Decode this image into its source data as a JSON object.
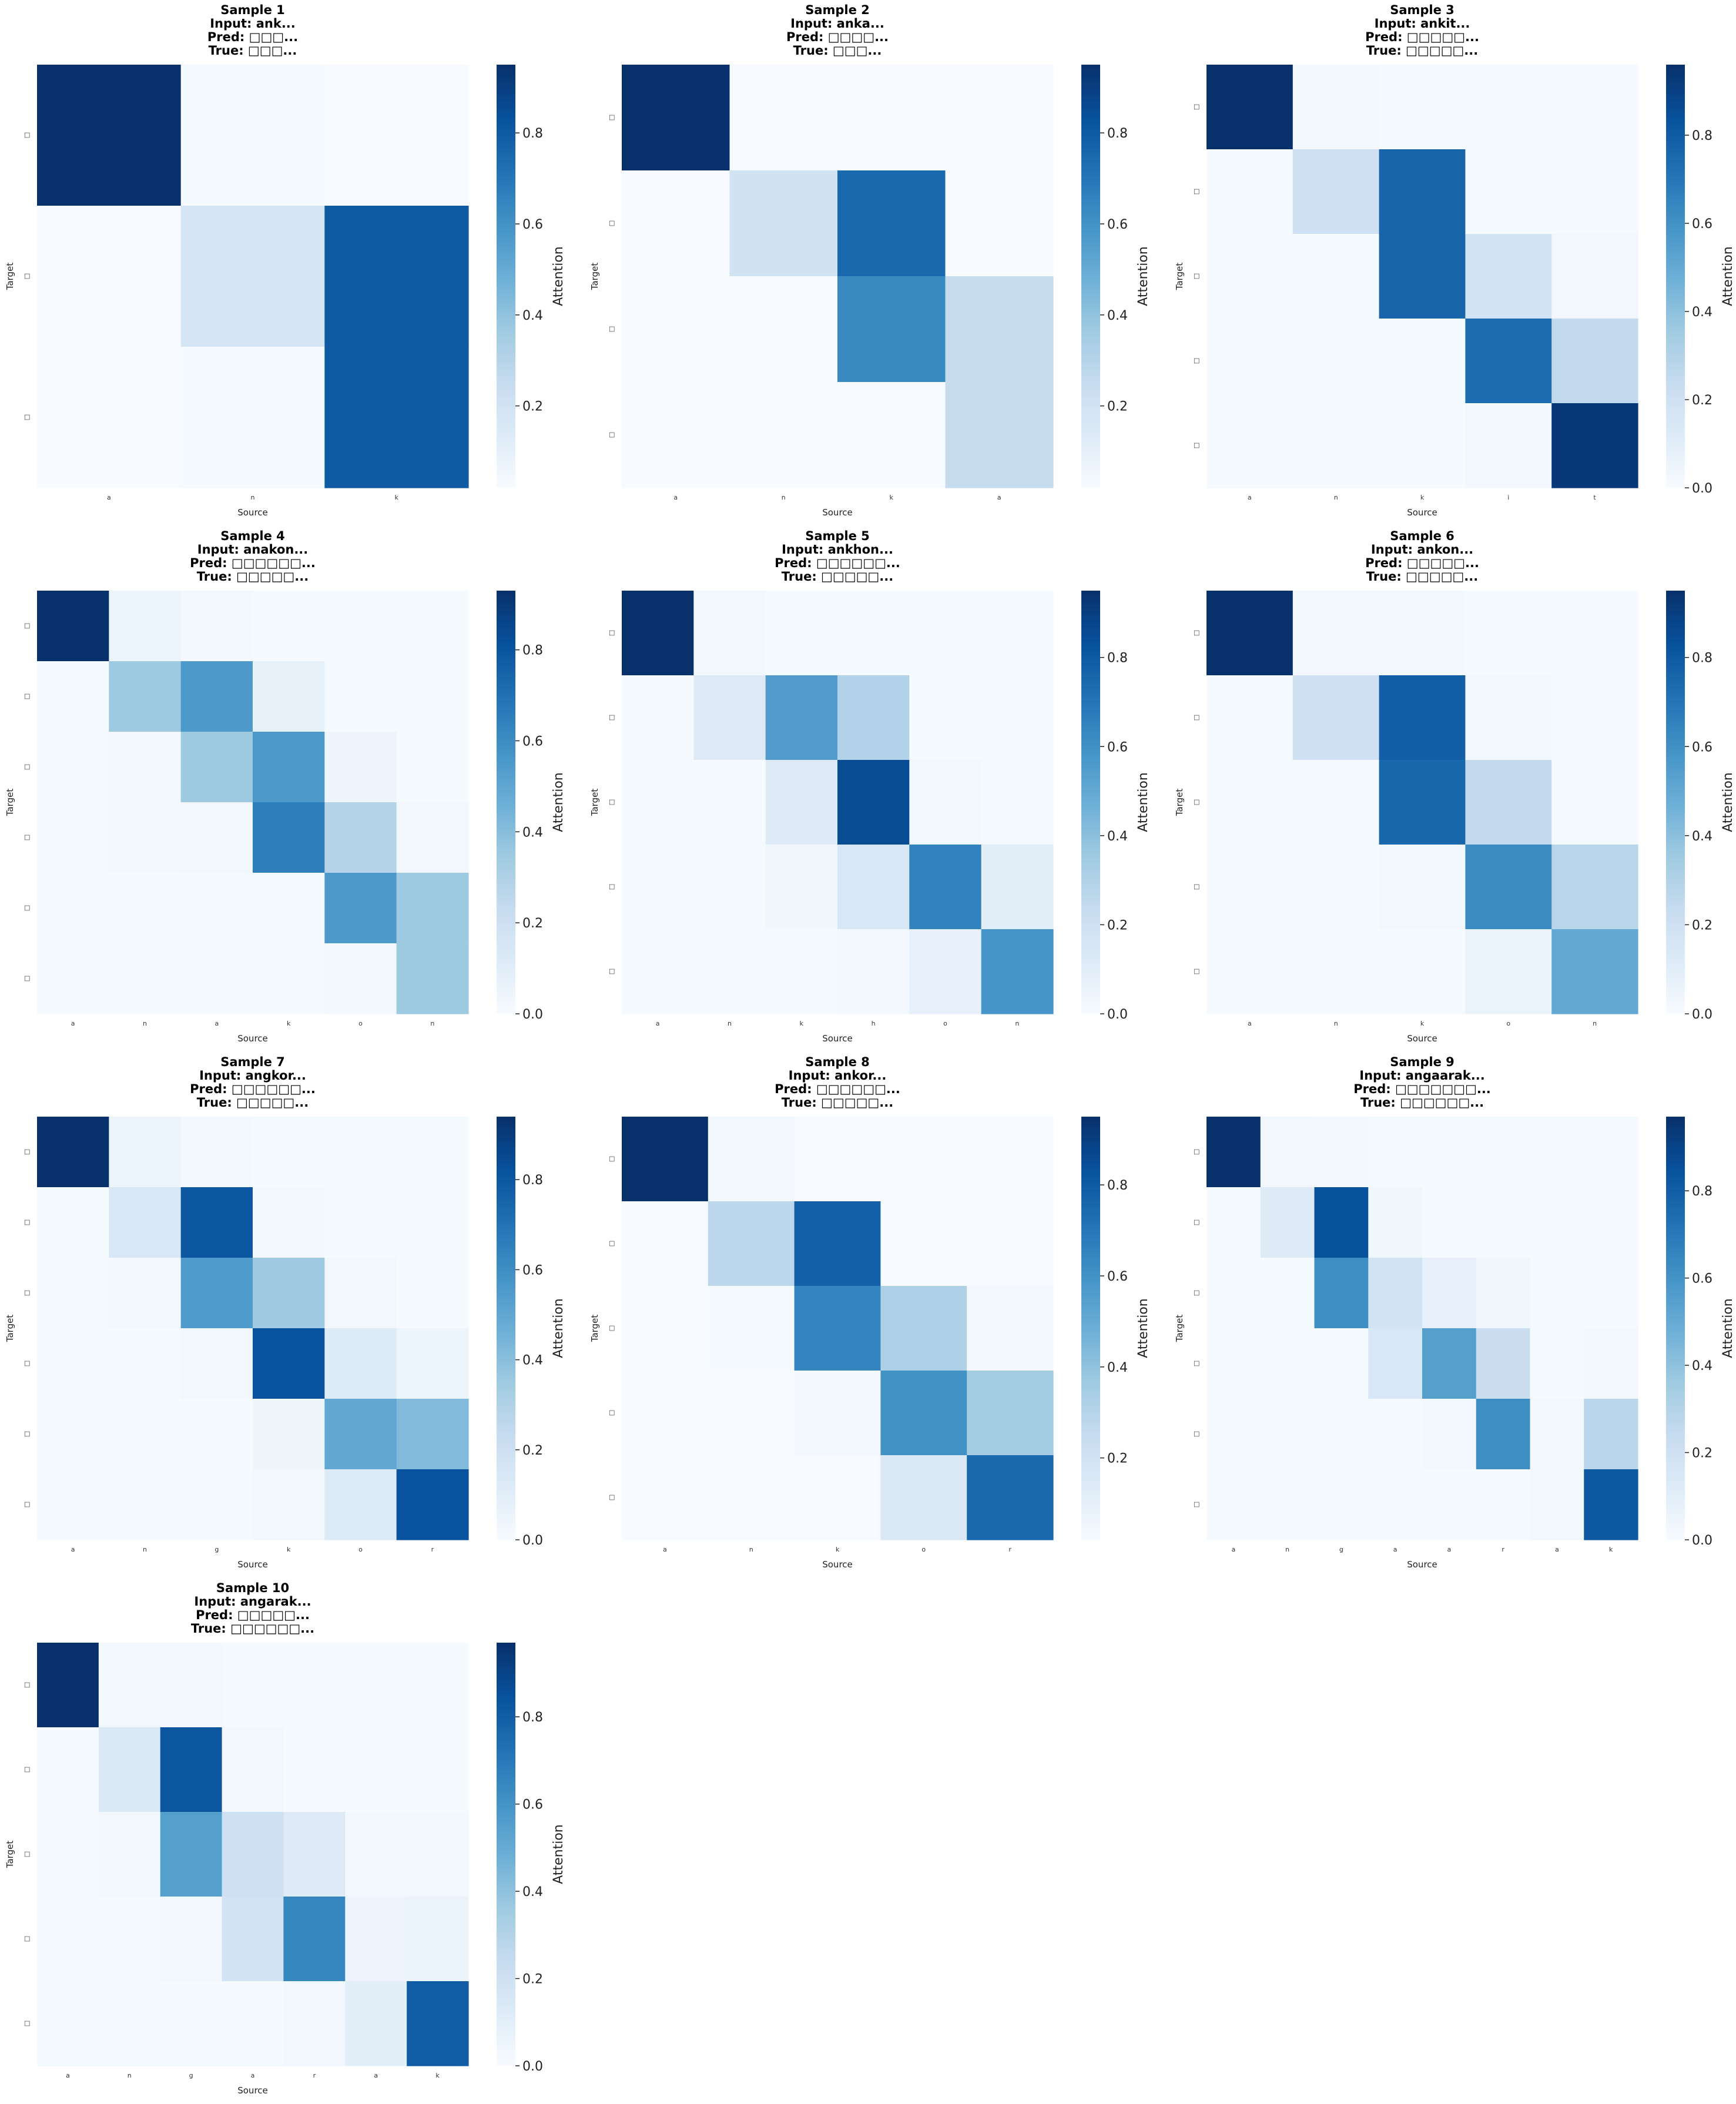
{
  "figure": {
    "colormap": "Blues",
    "color_low": "#f7fbff",
    "color_high": "#08306b"
  },
  "chart_data": [
    {
      "type": "heatmap",
      "title_lines": [
        "Sample 1",
        "Input: ank...",
        "Pred: □□□...",
        "True: □□□..."
      ],
      "xlabel": "Source",
      "ylabel": "Target",
      "colorbar_label": "Attention",
      "x_ticks": [
        "a",
        "n",
        "k"
      ],
      "y_ticks": [
        "□",
        "□",
        "□"
      ],
      "colorbar_ticks": [
        0.2,
        0.4,
        0.6,
        0.8
      ],
      "vmin": 0.02,
      "vmax": 0.95,
      "values": [
        [
          0.95,
          0.03,
          0.02
        ],
        [
          0.02,
          0.18,
          0.8
        ],
        [
          0.02,
          0.03,
          0.8
        ]
      ]
    },
    {
      "type": "heatmap",
      "title_lines": [
        "Sample 2",
        "Input: anka...",
        "Pred: □□□□...",
        "True: □□□..."
      ],
      "xlabel": "Source",
      "ylabel": "Target",
      "colorbar_label": "Attention",
      "x_ticks": [
        "a",
        "n",
        "k",
        "a"
      ],
      "y_ticks": [
        "□",
        "□",
        "□",
        "□"
      ],
      "colorbar_ticks": [
        0.2,
        0.4,
        0.6,
        0.8
      ],
      "vmin": 0.02,
      "vmax": 0.95,
      "values": [
        [
          0.95,
          0.02,
          0.02,
          0.02
        ],
        [
          0.02,
          0.2,
          0.75,
          0.02
        ],
        [
          0.02,
          0.02,
          0.63,
          0.25
        ],
        [
          0.02,
          0.02,
          0.02,
          0.25
        ]
      ]
    },
    {
      "type": "heatmap",
      "title_lines": [
        "Sample 3",
        "Input: ankit...",
        "Pred: □□□□□...",
        "True: □□□□□..."
      ],
      "xlabel": "Source",
      "ylabel": "Target",
      "colorbar_label": "Attention",
      "x_ticks": [
        "a",
        "n",
        "k",
        "i",
        "t"
      ],
      "y_ticks": [
        "□",
        "□",
        "□",
        "□",
        "□"
      ],
      "colorbar_ticks": [
        0.0,
        0.2,
        0.4,
        0.6,
        0.8
      ],
      "vmin": 0.0,
      "vmax": 0.96,
      "values": [
        [
          0.96,
          0.02,
          0.01,
          0.01,
          0.01
        ],
        [
          0.01,
          0.2,
          0.77,
          0.01,
          0.01
        ],
        [
          0.01,
          0.01,
          0.77,
          0.18,
          0.03
        ],
        [
          0.01,
          0.01,
          0.01,
          0.74,
          0.25
        ],
        [
          0.01,
          0.01,
          0.01,
          0.03,
          0.93
        ]
      ]
    },
    {
      "type": "heatmap",
      "title_lines": [
        "Sample 4",
        "Input: anakon...",
        "Pred: □□□□□□...",
        "True: □□□□□..."
      ],
      "xlabel": "Source",
      "ylabel": "Target",
      "colorbar_label": "Attention",
      "x_ticks": [
        "a",
        "n",
        "a",
        "k",
        "o",
        "n"
      ],
      "y_ticks": [
        "□",
        "□",
        "□",
        "□",
        "□",
        "□"
      ],
      "colorbar_ticks": [
        0.0,
        0.2,
        0.4,
        0.6,
        0.8
      ],
      "vmin": 0.0,
      "vmax": 0.93,
      "values": [
        [
          0.93,
          0.05,
          0.02,
          0.01,
          0.01,
          0.01
        ],
        [
          0.01,
          0.35,
          0.55,
          0.08,
          0.01,
          0.01
        ],
        [
          0.01,
          0.02,
          0.35,
          0.55,
          0.04,
          0.01
        ],
        [
          0.01,
          0.02,
          0.03,
          0.65,
          0.28,
          0.03
        ],
        [
          0.01,
          0.01,
          0.01,
          0.01,
          0.55,
          0.35
        ],
        [
          0.01,
          0.01,
          0.01,
          0.01,
          0.02,
          0.35
        ]
      ]
    },
    {
      "type": "heatmap",
      "title_lines": [
        "Sample 5",
        "Input: ankhon...",
        "Pred: □□□□□□...",
        "True: □□□□□..."
      ],
      "xlabel": "Source",
      "ylabel": "Target",
      "colorbar_label": "Attention",
      "x_ticks": [
        "a",
        "n",
        "k",
        "h",
        "o",
        "n"
      ],
      "y_ticks": [
        "□",
        "□",
        "□",
        "□",
        "□"
      ],
      "colorbar_ticks": [
        0.0,
        0.2,
        0.4,
        0.6,
        0.8
      ],
      "vmin": 0.0,
      "vmax": 0.95,
      "values": [
        [
          0.95,
          0.03,
          0.01,
          0.01,
          0.01,
          0.01
        ],
        [
          0.01,
          0.12,
          0.55,
          0.3,
          0.01,
          0.01
        ],
        [
          0.01,
          0.01,
          0.12,
          0.85,
          0.03,
          0.01
        ],
        [
          0.01,
          0.01,
          0.04,
          0.15,
          0.65,
          0.1
        ],
        [
          0.01,
          0.01,
          0.01,
          0.02,
          0.08,
          0.58
        ]
      ]
    },
    {
      "type": "heatmap",
      "title_lines": [
        "Sample 6",
        "Input: ankon...",
        "Pred: □□□□□...",
        "True: □□□□□..."
      ],
      "xlabel": "Source",
      "ylabel": "Target",
      "colorbar_label": "Attention",
      "x_ticks": [
        "a",
        "n",
        "k",
        "o",
        "n"
      ],
      "y_ticks": [
        "□",
        "□",
        "□",
        "□",
        "□"
      ],
      "colorbar_ticks": [
        0.0,
        0.2,
        0.4,
        0.6,
        0.8
      ],
      "vmin": 0.0,
      "vmax": 0.95,
      "values": [
        [
          0.95,
          0.03,
          0.02,
          0.01,
          0.01
        ],
        [
          0.01,
          0.2,
          0.78,
          0.02,
          0.01
        ],
        [
          0.01,
          0.01,
          0.75,
          0.25,
          0.01
        ],
        [
          0.01,
          0.01,
          0.03,
          0.62,
          0.28
        ],
        [
          0.01,
          0.01,
          0.01,
          0.06,
          0.5
        ]
      ]
    },
    {
      "type": "heatmap",
      "title_lines": [
        "Sample 7",
        "Input: angkor...",
        "Pred: □□□□□□...",
        "True: □□□□□..."
      ],
      "xlabel": "Source",
      "ylabel": "Target",
      "colorbar_label": "Attention",
      "x_ticks": [
        "a",
        "n",
        "g",
        "k",
        "o",
        "r"
      ],
      "y_ticks": [
        "□",
        "□",
        "□",
        "□",
        "□",
        "□"
      ],
      "colorbar_ticks": [
        0.0,
        0.2,
        0.4,
        0.6,
        0.8
      ],
      "vmin": 0.0,
      "vmax": 0.94,
      "values": [
        [
          0.94,
          0.05,
          0.02,
          0.01,
          0.01,
          0.01
        ],
        [
          0.01,
          0.15,
          0.8,
          0.03,
          0.01,
          0.01
        ],
        [
          0.01,
          0.02,
          0.55,
          0.35,
          0.03,
          0.01
        ],
        [
          0.01,
          0.01,
          0.03,
          0.82,
          0.12,
          0.05
        ],
        [
          0.01,
          0.01,
          0.01,
          0.04,
          0.5,
          0.42
        ],
        [
          0.01,
          0.01,
          0.01,
          0.02,
          0.12,
          0.82
        ]
      ]
    },
    {
      "type": "heatmap",
      "title_lines": [
        "Sample 8",
        "Input: ankor...",
        "Pred: □□□□□□...",
        "True: □□□□□..."
      ],
      "xlabel": "Source",
      "ylabel": "Target",
      "colorbar_label": "Attention",
      "x_ticks": [
        "a",
        "n",
        "k",
        "o",
        "r"
      ],
      "y_ticks": [
        "□",
        "□",
        "□",
        "□",
        "□"
      ],
      "colorbar_ticks": [
        0.2,
        0.4,
        0.6,
        0.8
      ],
      "vmin": 0.02,
      "vmax": 0.95,
      "values": [
        [
          0.95,
          0.05,
          0.02,
          0.02,
          0.02
        ],
        [
          0.02,
          0.28,
          0.78,
          0.02,
          0.02
        ],
        [
          0.02,
          0.03,
          0.65,
          0.32,
          0.04
        ],
        [
          0.02,
          0.02,
          0.04,
          0.6,
          0.35
        ],
        [
          0.02,
          0.02,
          0.02,
          0.15,
          0.75
        ]
      ]
    },
    {
      "type": "heatmap",
      "title_lines": [
        "Sample 9",
        "Input: angaarak...",
        "Pred: □□□□□□□...",
        "True: □□□□□□..."
      ],
      "xlabel": "Source",
      "ylabel": "Target",
      "colorbar_label": "Attention",
      "x_ticks": [
        "a",
        "n",
        "g",
        "a",
        "a",
        "r",
        "a",
        "k"
      ],
      "y_ticks": [
        "□",
        "□",
        "□",
        "□",
        "□",
        "□"
      ],
      "colorbar_ticks": [
        0.0,
        0.2,
        0.4,
        0.6,
        0.8
      ],
      "vmin": 0.0,
      "vmax": 0.97,
      "values": [
        [
          0.97,
          0.03,
          0.02,
          0.01,
          0.01,
          0.01,
          0.01,
          0.01
        ],
        [
          0.01,
          0.12,
          0.85,
          0.04,
          0.01,
          0.01,
          0.01,
          0.01
        ],
        [
          0.01,
          0.01,
          0.62,
          0.18,
          0.08,
          0.04,
          0.01,
          0.01
        ],
        [
          0.01,
          0.01,
          0.01,
          0.15,
          0.55,
          0.22,
          0.01,
          0.02
        ],
        [
          0.01,
          0.01,
          0.01,
          0.01,
          0.02,
          0.62,
          0.02,
          0.28
        ],
        [
          0.01,
          0.01,
          0.01,
          0.01,
          0.01,
          0.01,
          0.03,
          0.82
        ]
      ]
    },
    {
      "type": "heatmap",
      "title_lines": [
        "Sample 10",
        "Input: angarak...",
        "Pred: □□□□□...",
        "True: □□□□□□..."
      ],
      "xlabel": "Source",
      "ylabel": "Target",
      "colorbar_label": "Attention",
      "x_ticks": [
        "a",
        "n",
        "g",
        "a",
        "r",
        "a",
        "k"
      ],
      "y_ticks": [
        "□",
        "□",
        "□",
        "□",
        "□"
      ],
      "colorbar_ticks": [
        0.0,
        0.2,
        0.4,
        0.6,
        0.8
      ],
      "vmin": 0.0,
      "vmax": 0.97,
      "values": [
        [
          0.97,
          0.03,
          0.02,
          0.01,
          0.01,
          0.01,
          0.01
        ],
        [
          0.01,
          0.14,
          0.83,
          0.03,
          0.01,
          0.01,
          0.01
        ],
        [
          0.01,
          0.03,
          0.55,
          0.2,
          0.12,
          0.02,
          0.02
        ],
        [
          0.01,
          0.01,
          0.02,
          0.18,
          0.65,
          0.05,
          0.06
        ],
        [
          0.01,
          0.01,
          0.01,
          0.01,
          0.03,
          0.1,
          0.8
        ]
      ]
    }
  ]
}
